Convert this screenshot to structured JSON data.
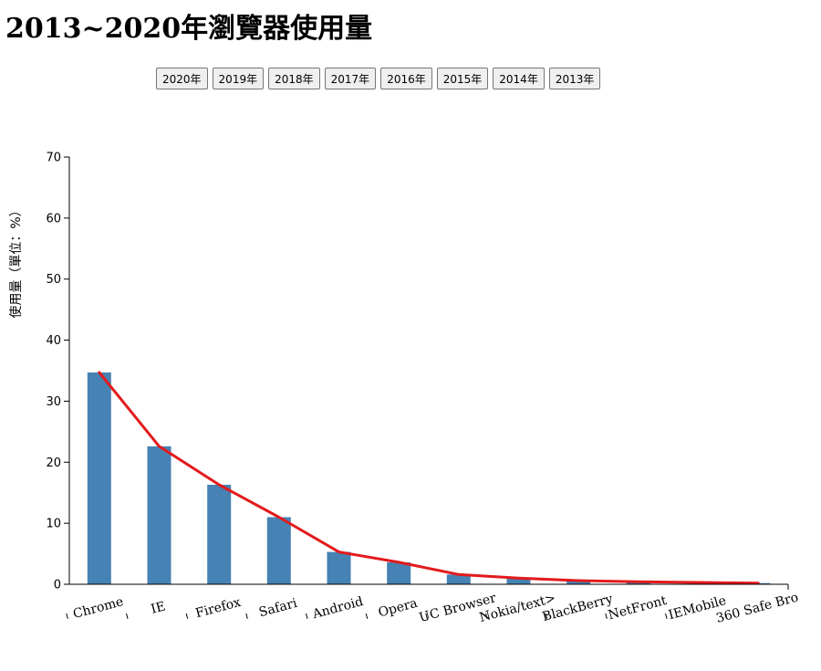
{
  "page": {
    "title": "2013~2020年瀏覽器使用量"
  },
  "year_buttons": [
    "2020年",
    "2019年",
    "2018年",
    "2017年",
    "2016年",
    "2015年",
    "2014年",
    "2013年"
  ],
  "colors": {
    "bar": "#4682b4",
    "line": "#e31a1c",
    "axis": "#000000"
  },
  "chart_data": {
    "type": "bar",
    "title": "",
    "xlabel": "",
    "ylabel": "使用量（單位：%）",
    "ylim": [
      0,
      70
    ],
    "yticks": [
      0,
      10,
      20,
      30,
      40,
      50,
      60,
      70
    ],
    "categories": [
      "Chrome",
      "IE",
      "Firefox",
      "Safari",
      "Android",
      "Opera",
      "UC Browser",
      "Nokia/text>",
      "BlackBerry",
      "NetFront",
      "IEMobile",
      "360 Safe Bro"
    ],
    "values": [
      34.7,
      22.6,
      16.3,
      11.0,
      5.3,
      3.6,
      1.6,
      1.0,
      0.6,
      0.4,
      0.3,
      0.2
    ],
    "overlay_line": {
      "type": "line",
      "values": [
        34.7,
        22.6,
        16.3,
        11.0,
        5.3,
        3.6,
        1.6,
        1.0,
        0.6,
        0.4,
        0.3,
        0.2
      ]
    },
    "grid": false,
    "legend": "none"
  }
}
